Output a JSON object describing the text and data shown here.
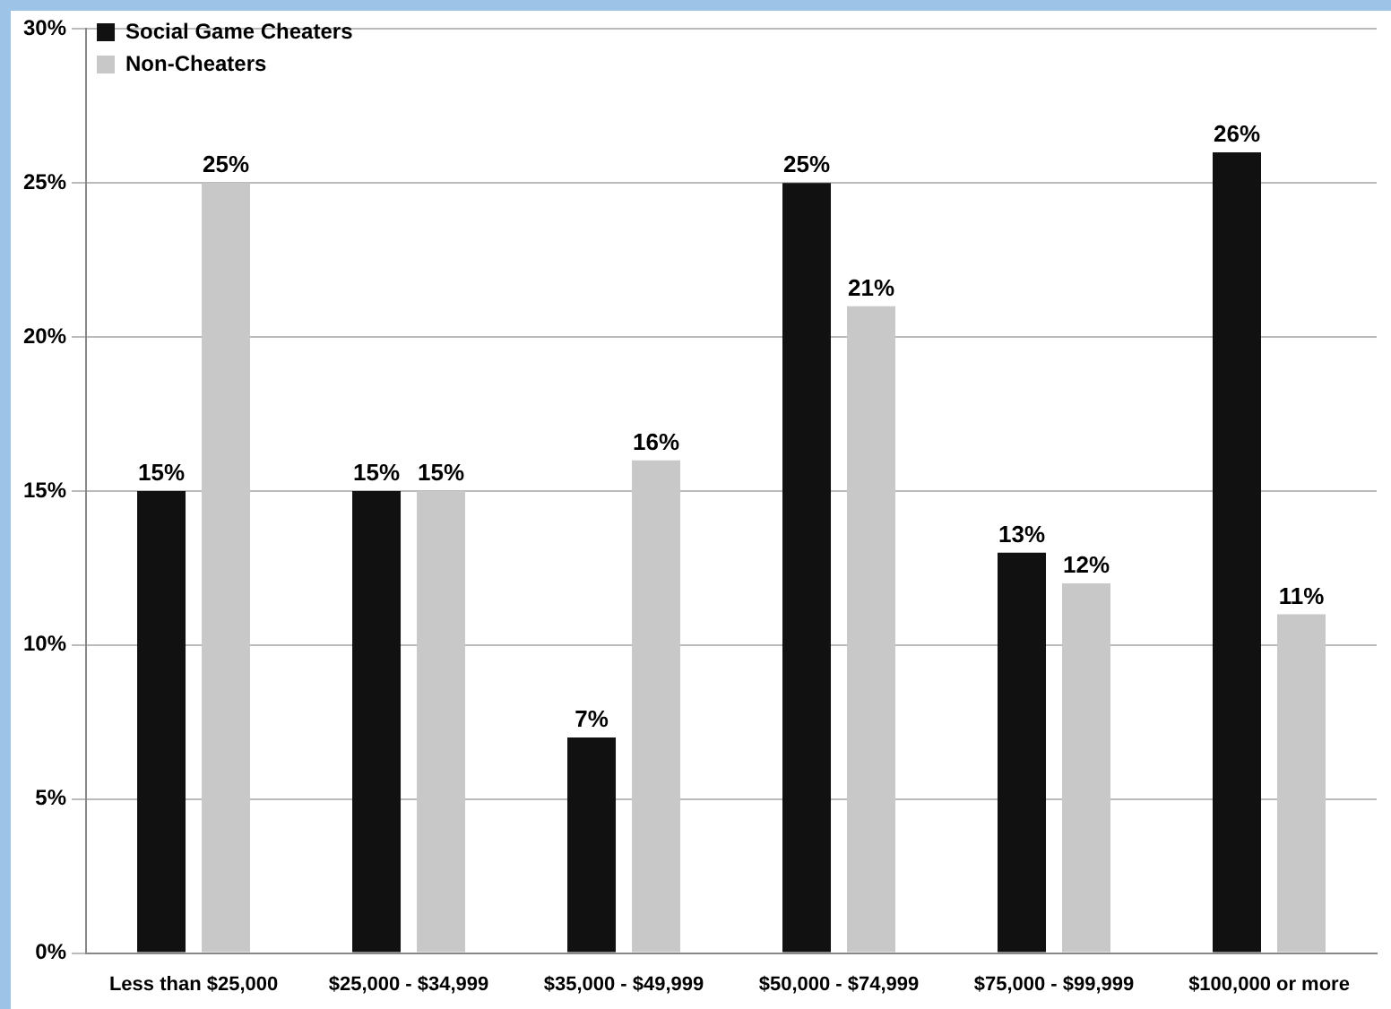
{
  "chart_data": {
    "type": "bar",
    "categories": [
      "Less than $25,000",
      "$25,000 - $34,999",
      "$35,000 - $49,999",
      "$50,000 - $74,999",
      "$75,000 - $99,999",
      "$100,000 or more"
    ],
    "series": [
      {
        "name": "Social Game Cheaters",
        "color": "#111111",
        "values": [
          15,
          15,
          7,
          25,
          13,
          26
        ],
        "value_labels": [
          "15%",
          "15%",
          "7%",
          "25%",
          "13%",
          "26%"
        ]
      },
      {
        "name": "Non-Cheaters",
        "color": "#c8c8c8",
        "values": [
          25,
          15,
          16,
          21,
          12,
          11
        ],
        "value_labels": [
          "25%",
          "15%",
          "16%",
          "21%",
          "12%",
          "11%"
        ]
      }
    ],
    "ylim": [
      0,
      30
    ],
    "yticks": [
      {
        "value": 0,
        "label": "0%"
      },
      {
        "value": 5,
        "label": "5%"
      },
      {
        "value": 10,
        "label": "10%"
      },
      {
        "value": 15,
        "label": "15%"
      },
      {
        "value": 20,
        "label": "20%"
      },
      {
        "value": 25,
        "label": "25%"
      },
      {
        "value": 30,
        "label": "30%"
      }
    ],
    "grid": "y",
    "legend": "top left"
  }
}
